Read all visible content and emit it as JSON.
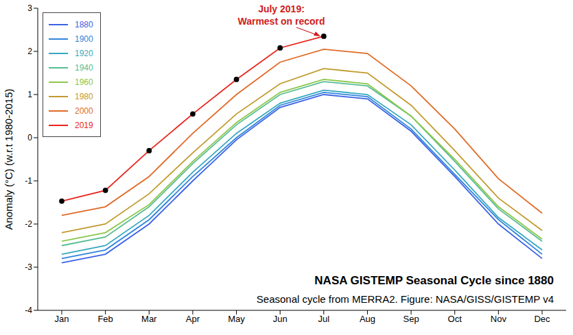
{
  "chart_data": {
    "type": "line",
    "title": "NASA GISTEMP Seasonal Cycle since 1880",
    "subtitle": "Seasonal cycle from MERRA2. Figure: NASA/GISS/GISTEMP v4",
    "y_label": "Anomaly (°C) (w.r.t 1980-2015)",
    "annotation": "July 2019:\nWarmest on record",
    "categories": [
      "Jan",
      "Feb",
      "Mar",
      "Apr",
      "May",
      "Jun",
      "Jul",
      "Aug",
      "Sep",
      "Oct",
      "Nov",
      "Dec"
    ],
    "ylim": [
      -4,
      3
    ],
    "yticks": [
      -4,
      -3,
      -2,
      -1,
      0,
      1,
      2,
      3
    ],
    "grid": false,
    "legend": "upper left",
    "series": [
      {
        "name": "1880",
        "color": "#3a62e6",
        "values": [
          -2.9,
          -2.7,
          -2.0,
          -1.0,
          -0.05,
          0.7,
          1.0,
          0.9,
          0.15,
          -0.9,
          -2.0,
          -2.8
        ]
      },
      {
        "name": "1900",
        "color": "#2f84dc",
        "values": [
          -2.8,
          -2.6,
          -1.9,
          -0.9,
          0.0,
          0.75,
          1.05,
          0.95,
          0.2,
          -0.85,
          -1.9,
          -2.7
        ]
      },
      {
        "name": "1920",
        "color": "#35a8c0",
        "values": [
          -2.7,
          -2.5,
          -1.8,
          -0.8,
          0.1,
          0.8,
          1.1,
          1.0,
          0.3,
          -0.75,
          -1.85,
          -2.6
        ]
      },
      {
        "name": "1940",
        "color": "#55bd92",
        "values": [
          -2.5,
          -2.3,
          -1.6,
          -0.6,
          0.3,
          1.0,
          1.3,
          1.2,
          0.5,
          -0.55,
          -1.65,
          -2.4
        ]
      },
      {
        "name": "1960",
        "color": "#8cc64a",
        "values": [
          -2.4,
          -2.2,
          -1.55,
          -0.55,
          0.35,
          1.05,
          1.35,
          1.25,
          0.5,
          -0.5,
          -1.6,
          -2.35
        ]
      },
      {
        "name": "1980",
        "color": "#c29a2c",
        "values": [
          -2.2,
          -2.0,
          -1.3,
          -0.35,
          0.55,
          1.25,
          1.6,
          1.5,
          0.75,
          -0.3,
          -1.4,
          -2.15
        ]
      },
      {
        "name": "2000",
        "color": "#e06a25",
        "values": [
          -1.8,
          -1.6,
          -0.9,
          0.1,
          1.0,
          1.75,
          2.05,
          1.95,
          1.2,
          0.2,
          -0.95,
          -1.75
        ]
      },
      {
        "name": "2019",
        "color": "#e8231a",
        "marker": "circle",
        "values": [
          -1.47,
          -1.22,
          -0.3,
          0.55,
          1.35,
          2.08,
          2.35,
          null,
          null,
          null,
          null,
          null
        ]
      }
    ]
  }
}
